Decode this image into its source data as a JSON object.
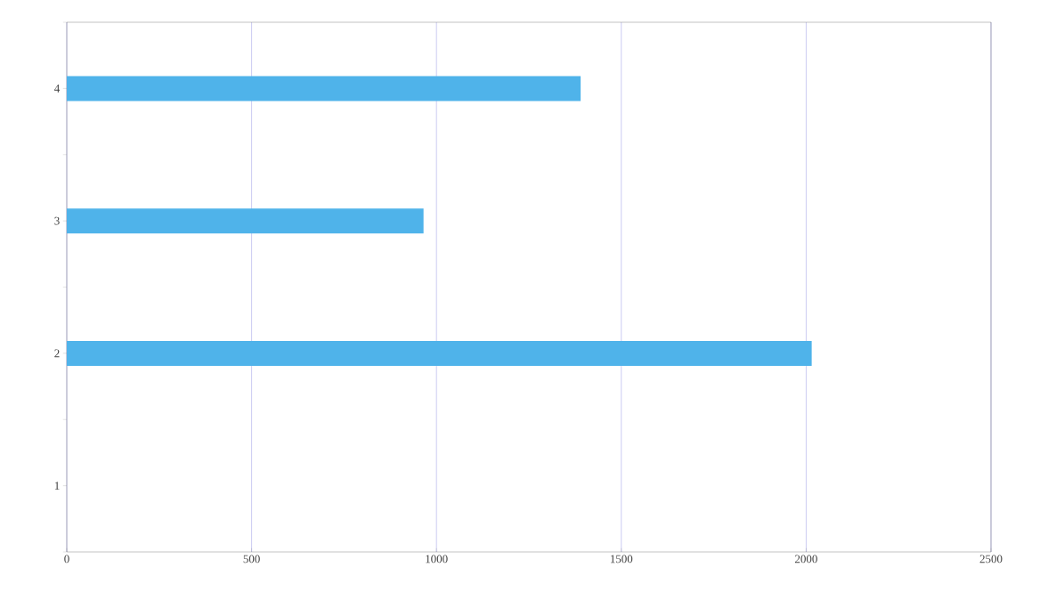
{
  "chart_data": {
    "type": "bar",
    "orientation": "horizontal",
    "categories": [
      "4",
      "3",
      "2",
      "1"
    ],
    "values": [
      1390,
      965,
      2015,
      null
    ],
    "color": "#4fb3ea",
    "xlim": [
      0,
      2500
    ],
    "xticks": [
      0,
      500,
      1000,
      1500,
      2000,
      2500
    ],
    "grid": "x"
  }
}
